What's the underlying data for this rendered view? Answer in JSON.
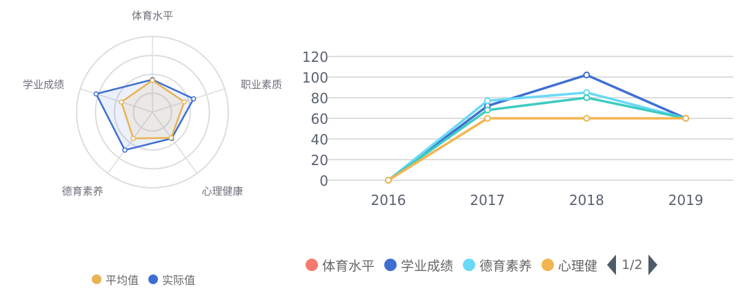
{
  "radar": {
    "indicators": [
      "体育水平",
      "职业素质",
      "心理健康",
      "德育素养",
      "学业成绩"
    ],
    "max": 100,
    "series": [
      {
        "name": "平均值",
        "color": "#e8b352",
        "values": [
          42,
          44,
          42,
          43,
          43
        ]
      },
      {
        "name": "实际值",
        "color": "#3f6fd1",
        "values": [
          43,
          57,
          43,
          62,
          78
        ]
      }
    ]
  },
  "chart_data": {
    "type": "line",
    "categories": [
      "2016",
      "2017",
      "2018",
      "2019"
    ],
    "ylim": [
      0,
      120
    ],
    "yticks": [
      0,
      20,
      40,
      60,
      80,
      100,
      120
    ],
    "grid": true,
    "legend_position": "bottom",
    "series": [
      {
        "name": "学业成绩",
        "color": "#3f6fd1",
        "values": [
          0,
          72,
          102,
          60
        ]
      },
      {
        "name": "德育素养",
        "color": "#6ad9f7",
        "values": [
          0,
          77,
          85,
          60
        ]
      },
      {
        "color": "#3ecbc0",
        "values": [
          0,
          68,
          80,
          60
        ]
      },
      {
        "name": "心理健康",
        "color": "#f3b550",
        "values": [
          0,
          60,
          60,
          60
        ]
      }
    ]
  },
  "line_legend": {
    "items": [
      {
        "label": "体育水平",
        "color": "#f47a6e"
      },
      {
        "label": "学业成绩",
        "color": "#3f6fd1"
      },
      {
        "label": "德育素养",
        "color": "#6ad9f7"
      },
      {
        "label": "心理健",
        "color": "#f3b550"
      }
    ],
    "page": "1/2"
  }
}
